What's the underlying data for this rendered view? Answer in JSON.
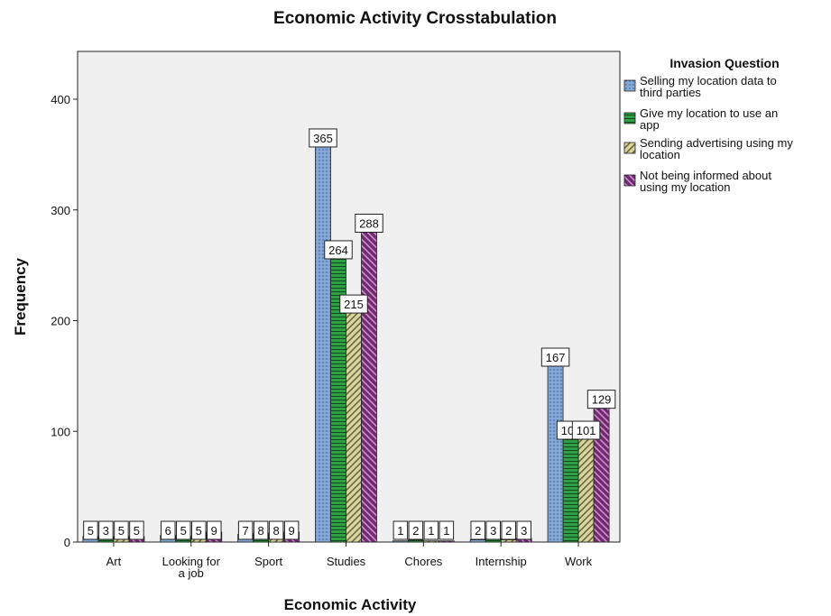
{
  "chart_data": {
    "type": "bar",
    "title": "Economic Activity Crosstabulation",
    "xlabel": "Economic Activity",
    "ylabel": "Frequency",
    "ylim": [
      0,
      450
    ],
    "yticks": [
      0,
      100,
      200,
      300,
      400
    ],
    "grid": false,
    "legend_title": "Invasion Question",
    "legend_position": "right",
    "categories": [
      [
        "Art"
      ],
      [
        "Looking for",
        "a job"
      ],
      [
        "Sport"
      ],
      [
        "Studies"
      ],
      [
        "Chores"
      ],
      [
        "Internship"
      ],
      [
        "Work"
      ]
    ],
    "series": [
      {
        "name": [
          "Selling my location data to",
          "third parties"
        ],
        "color": "#86a8d6",
        "pattern": "dots",
        "values": [
          5,
          6,
          7,
          365,
          1,
          2,
          167
        ]
      },
      {
        "name": [
          "Give my location to use an",
          "app"
        ],
        "color": "#2f9e44",
        "pattern": "horizontal-lines",
        "values": [
          3,
          5,
          8,
          264,
          2,
          3,
          101
        ]
      },
      {
        "name": [
          "Sending advertising using my",
          "location"
        ],
        "color": "#d8d59a",
        "pattern": "diagonal-hatch",
        "values": [
          5,
          5,
          8,
          215,
          1,
          2,
          101
        ]
      },
      {
        "name": [
          "Not being informed about",
          "using my location"
        ],
        "color": "#6e2b6e",
        "pattern": "diagonal-stripes",
        "values": [
          5,
          9,
          9,
          288,
          1,
          3,
          129
        ]
      }
    ],
    "data_labels": [
      [
        5,
        6,
        7,
        365,
        1,
        2,
        167
      ],
      [
        3,
        5,
        8,
        264,
        2,
        3,
        101
      ],
      [
        5,
        5,
        8,
        215,
        1,
        2,
        101
      ],
      [
        5,
        9,
        9,
        288,
        1,
        3,
        129
      ]
    ]
  }
}
